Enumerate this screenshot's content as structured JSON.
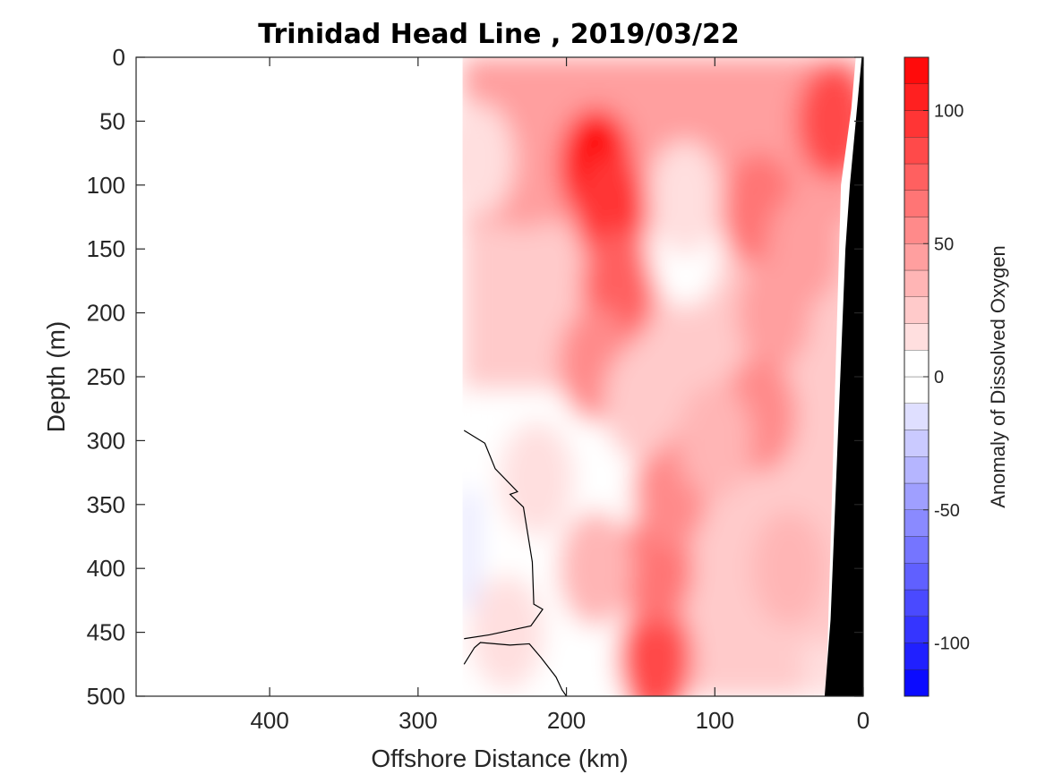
{
  "chart_data": {
    "type": "heatmap",
    "subtype": "filled-contour",
    "title": "Trinidad Head Line , 2019/03/22",
    "xlabel": "Offshore Distance (km)",
    "ylabel": "Depth (m)",
    "xlim": [
      490,
      0
    ],
    "ylim": [
      0,
      500
    ],
    "x_reversed": true,
    "y_reversed": true,
    "xticks": [
      400,
      300,
      200,
      100,
      0
    ],
    "yticks": [
      0,
      50,
      100,
      150,
      200,
      250,
      300,
      350,
      400,
      450,
      500
    ],
    "colorbar": {
      "label": "Anomaly of Dissolved Oxygen",
      "range": [
        -120,
        120
      ],
      "ticks": [
        100,
        50,
        0,
        -50,
        -100
      ],
      "level_step": 10,
      "colormap": "blue-white-red",
      "color_low": "#0000ff",
      "color_mid": "#ffffff",
      "color_high": "#ff0000"
    },
    "data_extent_km": [
      0,
      270
    ],
    "cells_km": [
      [
        180,
        85,
        110
      ],
      [
        170,
        120,
        90
      ],
      [
        165,
        180,
        70
      ],
      [
        180,
        240,
        50
      ],
      [
        230,
        90,
        40
      ],
      [
        260,
        80,
        10
      ],
      [
        120,
        150,
        -5
      ],
      [
        120,
        110,
        10
      ],
      [
        70,
        120,
        60
      ],
      [
        60,
        200,
        40
      ],
      [
        70,
        280,
        50
      ],
      [
        20,
        50,
        80
      ],
      [
        40,
        150,
        40
      ],
      [
        140,
        470,
        80
      ],
      [
        140,
        400,
        60
      ],
      [
        130,
        340,
        50
      ],
      [
        180,
        400,
        30
      ],
      [
        100,
        300,
        30
      ],
      [
        240,
        450,
        10
      ],
      [
        220,
        330,
        15
      ],
      [
        50,
        400,
        30
      ],
      [
        150,
        270,
        20
      ]
    ],
    "negative_patch": {
      "x_km": [
        260,
        270
      ],
      "depth_m": [
        340,
        430
      ],
      "value": -10
    },
    "bathymetry_color": "#000000",
    "series": []
  }
}
